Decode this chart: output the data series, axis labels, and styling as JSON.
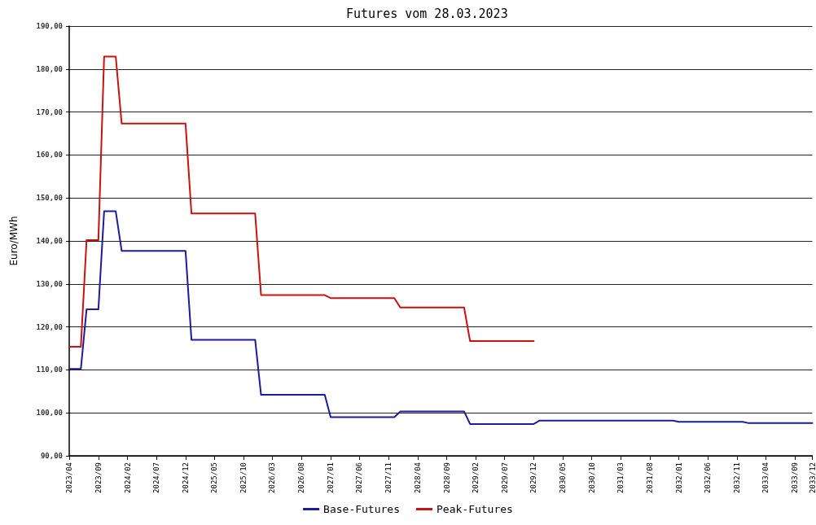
{
  "chart_data": {
    "type": "line",
    "title": "Futures vom 28.03.2023",
    "ylabel": "Euro/MWh",
    "series": [
      {
        "name": "Base-Futures",
        "color": "#1c1c9c",
        "x": [
          "2023-04",
          "2023-06",
          "2023-07",
          "2023-09",
          "2023-10",
          "2023-12",
          "2024-01",
          "2024-12",
          "2025-01",
          "2025-12",
          "2026-01",
          "2026-12",
          "2027-01",
          "2027-12",
          "2028-01",
          "2028-12",
          "2029-01",
          "2029-12",
          "2030-01",
          "2031-12",
          "2032-01",
          "2032-12",
          "2033-01",
          "2033-12"
        ],
        "values": [
          110.2,
          110.2,
          124.1,
          124.1,
          146.9,
          146.9,
          137.7,
          137.7,
          117.0,
          117.0,
          104.2,
          104.2,
          99.0,
          99.0,
          100.3,
          100.3,
          97.4,
          97.4,
          98.2,
          98.2,
          97.9,
          97.9,
          97.6,
          97.6
        ]
      },
      {
        "name": "Peak-Futures",
        "color": "#cc1111",
        "x": [
          "2023-04",
          "2023-06",
          "2023-07",
          "2023-09",
          "2023-10",
          "2023-12",
          "2024-01",
          "2024-12",
          "2025-01",
          "2025-12",
          "2026-01",
          "2026-12",
          "2027-01",
          "2027-12",
          "2028-01",
          "2028-12",
          "2029-01",
          "2029-12"
        ],
        "values": [
          115.4,
          115.4,
          140.2,
          140.2,
          182.9,
          182.9,
          167.3,
          167.3,
          146.4,
          146.4,
          127.4,
          127.4,
          126.7,
          126.7,
          124.5,
          124.5,
          116.7,
          116.7
        ]
      }
    ],
    "xlim": [
      "2023-04",
      "2033-12"
    ],
    "xticks": [
      {
        "value": "2023-04",
        "label": "2023/04"
      },
      {
        "value": "2023-09",
        "label": "2023/09"
      },
      {
        "value": "2024-02",
        "label": "2024/02"
      },
      {
        "value": "2024-07",
        "label": "2024/07"
      },
      {
        "value": "2024-12",
        "label": "2024/12"
      },
      {
        "value": "2025-05",
        "label": "2025/05"
      },
      {
        "value": "2025-10",
        "label": "2025/10"
      },
      {
        "value": "2026-03",
        "label": "2026/03"
      },
      {
        "value": "2026-08",
        "label": "2026/08"
      },
      {
        "value": "2027-01",
        "label": "2027/01"
      },
      {
        "value": "2027-06",
        "label": "2027/06"
      },
      {
        "value": "2027-11",
        "label": "2027/11"
      },
      {
        "value": "2028-04",
        "label": "2028/04"
      },
      {
        "value": "2028-09",
        "label": "2028/09"
      },
      {
        "value": "2029-02",
        "label": "2029/02"
      },
      {
        "value": "2029-07",
        "label": "2029/07"
      },
      {
        "value": "2029-12",
        "label": "2029/12"
      },
      {
        "value": "2030-05",
        "label": "2030/05"
      },
      {
        "value": "2030-10",
        "label": "2030/10"
      },
      {
        "value": "2031-03",
        "label": "2031/03"
      },
      {
        "value": "2031-08",
        "label": "2031/08"
      },
      {
        "value": "2032-01",
        "label": "2032/01"
      },
      {
        "value": "2032-06",
        "label": "2032/06"
      },
      {
        "value": "2032-11",
        "label": "2032/11"
      },
      {
        "value": "2033-04",
        "label": "2033/04"
      },
      {
        "value": "2033-09",
        "label": "2033/09"
      },
      {
        "value": "2033-12",
        "label": "2033/12"
      }
    ],
    "ylim": [
      90,
      190
    ],
    "yticks": [
      {
        "value": 90,
        "label": "90,00"
      },
      {
        "value": 100,
        "label": "100,00"
      },
      {
        "value": 110,
        "label": "110,00"
      },
      {
        "value": 120,
        "label": "120,00"
      },
      {
        "value": 130,
        "label": "130,00"
      },
      {
        "value": 140,
        "label": "140,00"
      },
      {
        "value": 150,
        "label": "150,00"
      },
      {
        "value": 160,
        "label": "160,00"
      },
      {
        "value": 170,
        "label": "170,00"
      },
      {
        "value": 180,
        "label": "180,00"
      },
      {
        "value": 190,
        "label": "190,00"
      }
    ],
    "grid": "y",
    "legend": "bottom",
    "marker": "none",
    "line_style": "solid"
  }
}
